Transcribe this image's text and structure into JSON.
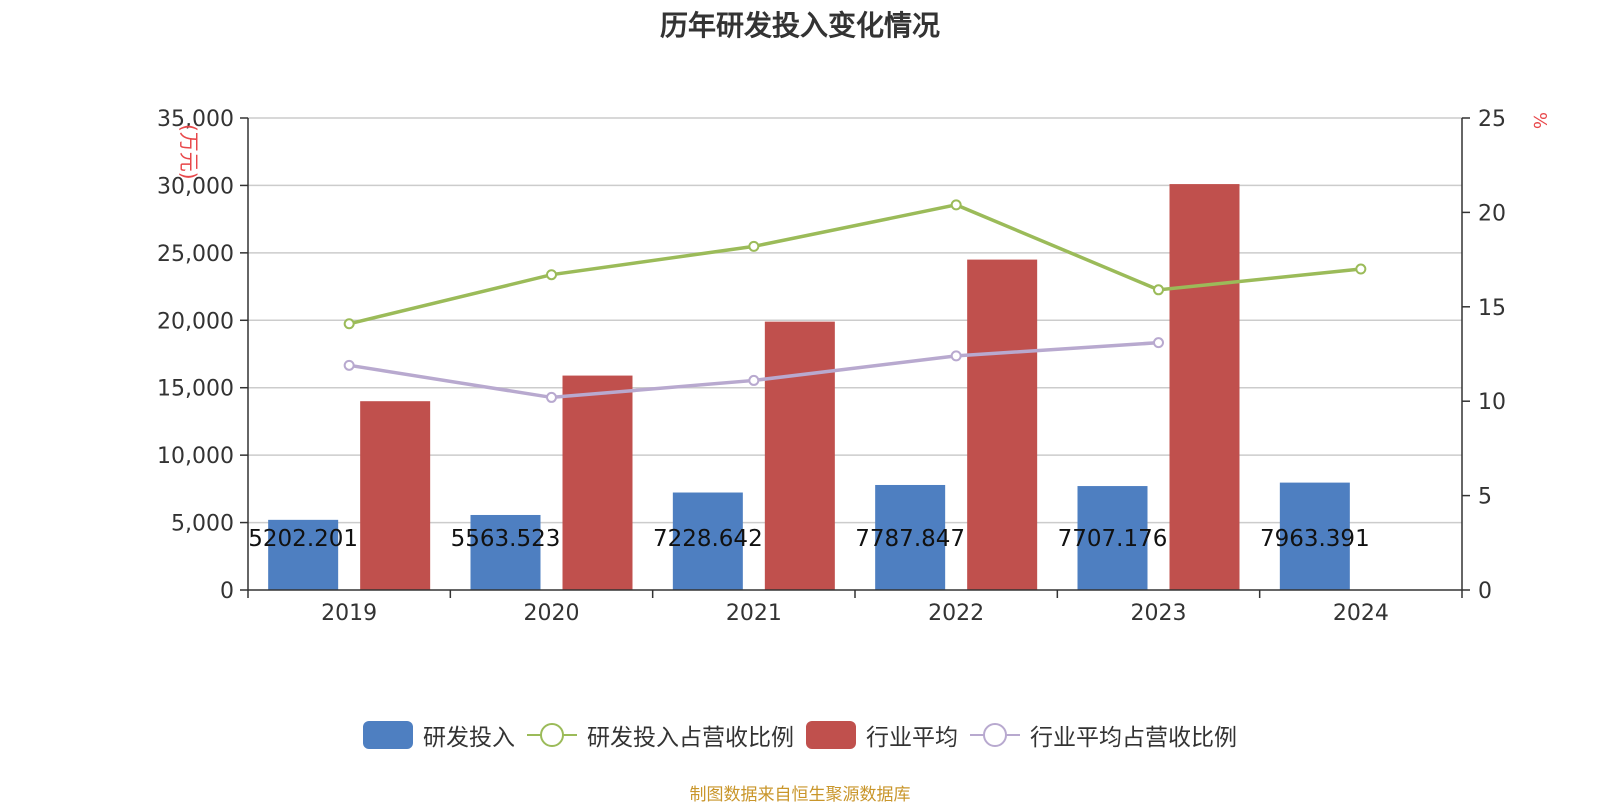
{
  "chart_data": {
    "type": "bar",
    "title": "历年研发投入变化情况",
    "categories": [
      "2019",
      "2020",
      "2021",
      "2022",
      "2023",
      "2024"
    ],
    "y_left": {
      "label": "(万元)",
      "ticks": [
        "0",
        "5,000",
        "10,000",
        "15,000",
        "20,000",
        "25,000",
        "30,000",
        "35,000"
      ],
      "range": [
        0,
        35000
      ]
    },
    "y_right": {
      "label": "%",
      "ticks": [
        "0",
        "5",
        "10",
        "15",
        "20",
        "25"
      ],
      "range": [
        0,
        25
      ]
    },
    "grid": true,
    "legend_position": "bottom",
    "series": [
      {
        "name": "研发投入",
        "type": "bar",
        "axis": "left",
        "color": "#4e7fc1",
        "values": [
          5202.201,
          5563.523,
          7228.642,
          7787.847,
          7707.176,
          7963.391
        ],
        "labels": [
          "5202.201",
          "5563.523",
          "7228.642",
          "7787.847",
          "7707.176",
          "7963.391"
        ]
      },
      {
        "name": "研发投入占营收比例",
        "type": "line",
        "axis": "right",
        "color": "#9bbb59",
        "values": [
          14.1,
          16.7,
          18.2,
          20.4,
          15.9,
          17.0
        ]
      },
      {
        "name": "行业平均",
        "type": "bar",
        "axis": "left",
        "color": "#c0504d",
        "values": [
          14000,
          15900,
          19900,
          24500,
          30100,
          null
        ]
      },
      {
        "name": "行业平均占营收比例",
        "type": "line",
        "axis": "right",
        "color": "#b8a9cf",
        "values": [
          11.9,
          10.2,
          11.1,
          12.4,
          13.1,
          null
        ]
      }
    ]
  },
  "source": "制图数据来自恒生聚源数据库"
}
